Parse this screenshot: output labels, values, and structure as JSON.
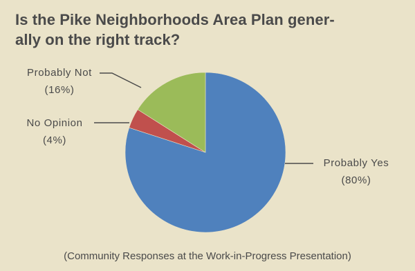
{
  "chart_data": {
    "type": "pie",
    "title": "Is the Pike Neighborhoods Area Plan generally on the right track?",
    "title_lines": [
      "Is the Pike Neighborhoods Area Plan gener-",
      "ally on the right track?"
    ],
    "subtitle": "(Community Responses at the Work-in-Progress Presentation)",
    "start_angle_deg": 0,
    "direction": "clockwise",
    "slices": [
      {
        "label": "Probably Yes",
        "value": 80,
        "value_label": "(80%)",
        "color": "#4f81bd"
      },
      {
        "label": "No Opinion",
        "value": 4,
        "value_label": "(4%)",
        "color": "#c0504d"
      },
      {
        "label": "Probably Not",
        "value": 16,
        "value_label": "(16%)",
        "color": "#9bbb59"
      }
    ],
    "legend": "none"
  },
  "colors": {
    "background": "#eae3c9",
    "text": "#4a4a4a"
  }
}
